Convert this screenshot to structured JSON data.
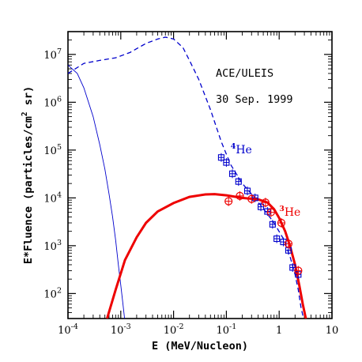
{
  "chart_data": {
    "type": "scatter",
    "xlabel": "E (MeV/Nucleon)",
    "ylabel_parts": {
      "pre": "E*Fluence (particles/cm",
      "sup": "2",
      "post": " sr)"
    },
    "xscale": "log",
    "yscale": "log",
    "xlim": [
      0.0001,
      10
    ],
    "ylim": [
      30,
      30000000
    ],
    "x_ticks": [
      0.0001,
      0.001,
      0.01,
      0.1,
      1,
      10
    ],
    "x_tick_labels": [
      {
        "base": "10",
        "exp": "-4"
      },
      {
        "base": "10",
        "exp": "-3"
      },
      {
        "base": "10",
        "exp": "-2"
      },
      {
        "base": "10",
        "exp": "-1"
      },
      {
        "base": "1",
        "exp": ""
      },
      {
        "base": "10",
        "exp": ""
      }
    ],
    "y_ticks": [
      100,
      1000,
      10000,
      100000,
      1000000,
      10000000
    ],
    "y_tick_labels": [
      {
        "base": "10",
        "exp": "2"
      },
      {
        "base": "10",
        "exp": "3"
      },
      {
        "base": "10",
        "exp": "4"
      },
      {
        "base": "10",
        "exp": "5"
      },
      {
        "base": "10",
        "exp": "6"
      },
      {
        "base": "10",
        "exp": "7"
      }
    ],
    "annotation_line1": "ACE/ULEIS",
    "annotation_line2": "30 Sep. 1999",
    "series": [
      {
        "label_sup": "4",
        "label_main": "He",
        "label_at": [
          0.12,
          85000
        ],
        "color": "#0000cc",
        "marker": "square-plus",
        "points": [
          [
            0.08,
            70000
          ],
          [
            0.1,
            55000
          ],
          [
            0.13,
            32000
          ],
          [
            0.17,
            22000
          ],
          [
            0.25,
            14000
          ],
          [
            0.35,
            10000
          ],
          [
            0.45,
            6500
          ],
          [
            0.6,
            5200
          ],
          [
            0.75,
            2800
          ],
          [
            0.9,
            1400
          ],
          [
            1.2,
            1200
          ],
          [
            1.5,
            800
          ],
          [
            1.8,
            350
          ],
          [
            2.3,
            250
          ]
        ],
        "fit_dashed": [
          [
            0.0001,
            4000000
          ],
          [
            0.0002,
            6500000
          ],
          [
            0.0004,
            7500000
          ],
          [
            0.0008,
            8500000
          ],
          [
            0.0015,
            11000000
          ],
          [
            0.003,
            17000000
          ],
          [
            0.005,
            21000000
          ],
          [
            0.007,
            23000000
          ],
          [
            0.01,
            21000000
          ],
          [
            0.015,
            14000000
          ],
          [
            0.02,
            7500000
          ],
          [
            0.03,
            3000000
          ],
          [
            0.05,
            700000
          ],
          [
            0.08,
            150000
          ],
          [
            0.12,
            50000
          ],
          [
            0.2,
            20000
          ],
          [
            0.3,
            12000
          ],
          [
            0.5,
            6000
          ],
          [
            0.8,
            3000
          ],
          [
            1.2,
            1400
          ],
          [
            1.6,
            600
          ],
          [
            2.0,
            250
          ],
          [
            2.3,
            120
          ],
          [
            2.6,
            50
          ],
          [
            2.9,
            30
          ]
        ],
        "thin_curve": [
          [
            0.0001,
            6000000
          ],
          [
            0.00015,
            4000000
          ],
          [
            0.0002,
            2000000
          ],
          [
            0.0003,
            500000
          ],
          [
            0.0004,
            130000
          ],
          [
            0.0005,
            40000
          ],
          [
            0.0006,
            12000
          ],
          [
            0.0007,
            4000
          ],
          [
            0.0008,
            1300
          ],
          [
            0.0009,
            400
          ],
          [
            0.001,
            150
          ],
          [
            0.0011,
            60
          ],
          [
            0.00118,
            30
          ]
        ]
      },
      {
        "label_sup": "3",
        "label_main": "He",
        "label_at": [
          1.0,
          4200
        ],
        "color": "#ee0000",
        "marker": "circle-plus",
        "points": [
          [
            0.11,
            8500
          ],
          [
            0.18,
            11000
          ],
          [
            0.3,
            9500
          ],
          [
            0.55,
            8000
          ],
          [
            0.7,
            5000
          ],
          [
            1.1,
            3000
          ],
          [
            1.5,
            1100
          ],
          [
            2.3,
            300
          ]
        ],
        "fit_solid": [
          [
            0.00055,
            30
          ],
          [
            0.0008,
            120
          ],
          [
            0.0012,
            500
          ],
          [
            0.002,
            1500
          ],
          [
            0.003,
            3000
          ],
          [
            0.005,
            5200
          ],
          [
            0.01,
            7800
          ],
          [
            0.02,
            10500
          ],
          [
            0.04,
            11800
          ],
          [
            0.06,
            12000
          ],
          [
            0.1,
            11300
          ],
          [
            0.2,
            10000
          ],
          [
            0.4,
            9300
          ],
          [
            0.6,
            8000
          ],
          [
            0.8,
            5800
          ],
          [
            1.0,
            3800
          ],
          [
            1.3,
            2000
          ],
          [
            1.6,
            1000
          ],
          [
            2.0,
            400
          ],
          [
            2.4,
            150
          ],
          [
            2.8,
            60
          ],
          [
            3.2,
            30
          ]
        ]
      }
    ]
  }
}
